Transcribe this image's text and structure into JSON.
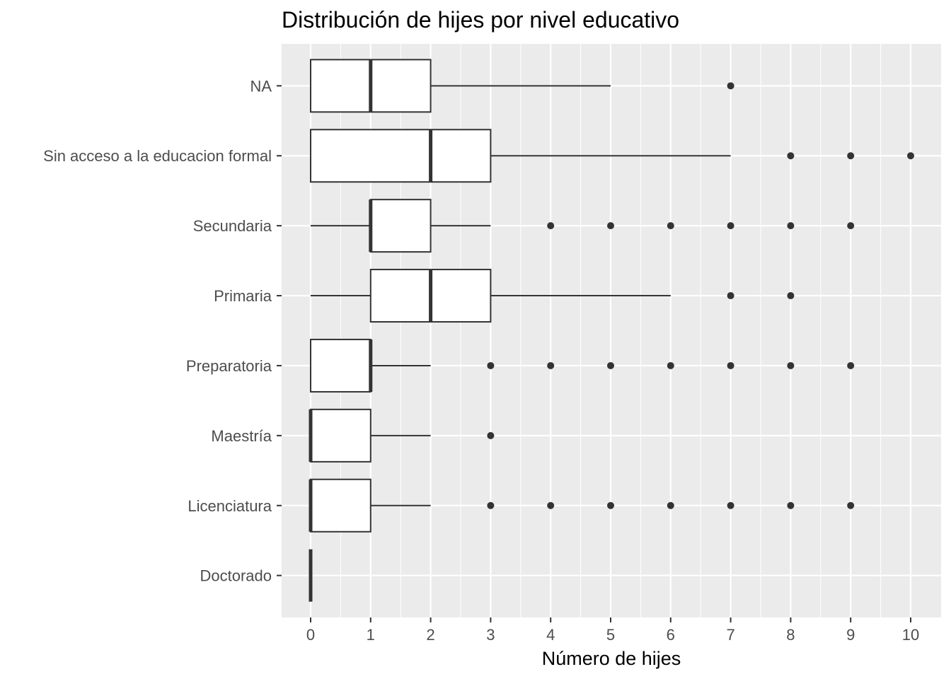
{
  "chart_data": {
    "type": "boxplot",
    "title": "Distribución de hijes por nivel educativo",
    "xlabel": "Número de hijes",
    "ylabel": "",
    "xlim": [
      -0.5,
      10.5
    ],
    "x_ticks": [
      "0",
      "1",
      "2",
      "3",
      "4",
      "5",
      "6",
      "7",
      "8",
      "9",
      "10"
    ],
    "grid": true,
    "orientation": "horizontal",
    "categories": [
      "NA",
      "Sin acceso a la educacion formal",
      "Secundaria",
      "Primaria",
      "Preparatoria",
      "Maestría",
      "Licenciatura",
      "Doctorado"
    ],
    "boxes": [
      {
        "category": "NA",
        "whisker_low": 0,
        "q1": 0,
        "median": 1,
        "q3": 2,
        "whisker_high": 5,
        "outliers": [
          7
        ]
      },
      {
        "category": "Sin acceso a la educacion formal",
        "whisker_low": 0,
        "q1": 0,
        "median": 2,
        "q3": 3,
        "whisker_high": 7,
        "outliers": [
          8,
          9,
          10
        ]
      },
      {
        "category": "Secundaria",
        "whisker_low": 0,
        "q1": 1,
        "median": 1,
        "q3": 2,
        "whisker_high": 3,
        "outliers": [
          4,
          5,
          6,
          7,
          8,
          9
        ]
      },
      {
        "category": "Primaria",
        "whisker_low": 0,
        "q1": 1,
        "median": 2,
        "q3": 3,
        "whisker_high": 6,
        "outliers": [
          7,
          8
        ]
      },
      {
        "category": "Preparatoria",
        "whisker_low": 0,
        "q1": 0,
        "median": 1,
        "q3": 1,
        "whisker_high": 2,
        "outliers": [
          3,
          4,
          5,
          6,
          7,
          8,
          9
        ]
      },
      {
        "category": "Maestría",
        "whisker_low": 0,
        "q1": 0,
        "median": 0,
        "q3": 1,
        "whisker_high": 2,
        "outliers": [
          3
        ]
      },
      {
        "category": "Licenciatura",
        "whisker_low": 0,
        "q1": 0,
        "median": 0,
        "q3": 1,
        "whisker_high": 2,
        "outliers": [
          3,
          4,
          5,
          6,
          7,
          8,
          9
        ]
      },
      {
        "category": "Doctorado",
        "whisker_low": 0,
        "q1": 0,
        "median": 0,
        "q3": 0,
        "whisker_high": 0,
        "outliers": []
      }
    ],
    "colors": {
      "panel_background": "#ebebeb",
      "grid_major": "#ffffff",
      "box_fill": "#ffffff",
      "box_line": "#333333",
      "outlier": "#333333",
      "tick_text": "#4d4d4d"
    }
  }
}
